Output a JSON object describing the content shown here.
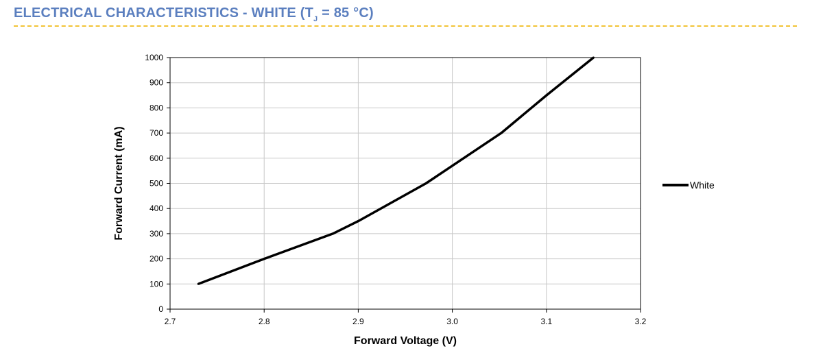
{
  "header": {
    "title_prefix": "ELECTRICAL CHARACTERISTICS - WHITE (T",
    "title_subscript": "J",
    "title_suffix": " = 85 °C)",
    "accent_color": "#5b7fbf",
    "rule_color": "#f2c335"
  },
  "chart_data": {
    "type": "line",
    "title": "ELECTRICAL CHARACTERISTICS - WHITE (TJ = 85 °C)",
    "xlabel": "Forward Voltage (V)",
    "ylabel": "Forward Current (mA)",
    "xlim": [
      2.7,
      3.2
    ],
    "ylim": [
      0,
      1000
    ],
    "xticks": [
      2.7,
      2.8,
      2.9,
      3.0,
      3.1,
      3.2
    ],
    "xtick_labels": [
      "2.7",
      "2.8",
      "2.9",
      "3.0",
      "3.1",
      "3.2"
    ],
    "yticks": [
      0,
      100,
      200,
      300,
      400,
      500,
      600,
      700,
      800,
      900,
      1000
    ],
    "ytick_labels": [
      "0",
      "100",
      "200",
      "300",
      "400",
      "500",
      "600",
      "700",
      "800",
      "900",
      "1000"
    ],
    "grid": true,
    "legend_position": "right",
    "series": [
      {
        "name": "White",
        "color": "#000000",
        "x": [
          2.73,
          2.8,
          2.873,
          2.9,
          2.972,
          3.0,
          3.052,
          3.1,
          3.15
        ],
        "y": [
          100,
          200,
          300,
          350,
          500,
          570,
          700,
          850,
          1000
        ]
      }
    ]
  }
}
